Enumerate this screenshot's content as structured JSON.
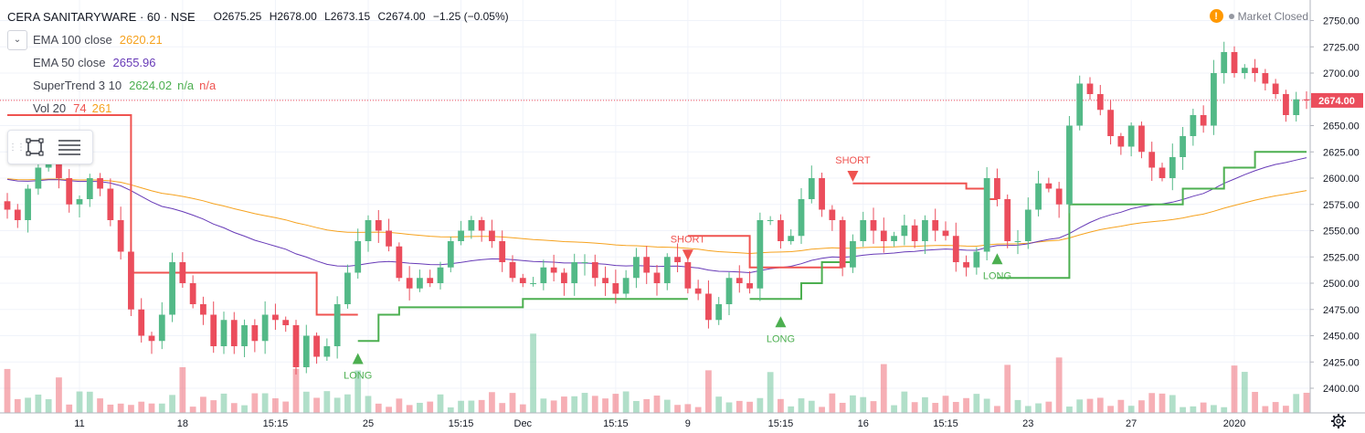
{
  "header": {
    "symbol": "CERA SANITARYWARE · 60 · NSE",
    "open": "O2675.25",
    "high": "H2678.00",
    "low": "L2673.15",
    "close": "C2674.00",
    "change": "−1.25 (−0.05%)"
  },
  "indicators": [
    {
      "name": "EMA 100 close",
      "value": "2620.21",
      "color": "#f6a21e"
    },
    {
      "name": "EMA 50 close",
      "value": "2655.96",
      "color": "#673ab7"
    },
    {
      "name": "SuperTrend 3 10",
      "value": "2624.02",
      "extra1": "n/a",
      "extra2": "n/a",
      "color": "#4caf50",
      "extra_color": "#ef5350"
    },
    {
      "name": "Vol 20",
      "value": "74",
      "extra1": "261",
      "color": "#ef5350",
      "extra_color": "#f6a21e"
    }
  ],
  "status": {
    "label": "Market Closed"
  },
  "icons": [
    "chevron-down-icon",
    "rectangle-select-icon",
    "list-icon",
    "warning-icon",
    "gear-icon"
  ],
  "colors": {
    "up": "#53b987",
    "down": "#eb4d5c",
    "st_up": "#4caf50",
    "st_down": "#ef5350",
    "ema100": "#f6a21e",
    "ema50": "#673ab7"
  },
  "chart_data": {
    "type": "candlestick",
    "y_ticks": [
      2400,
      2425,
      2450,
      2475,
      2500,
      2525,
      2550,
      2575,
      2600,
      2625,
      2650,
      2675,
      2700,
      2725,
      2750
    ],
    "ylim": [
      2385,
      2760
    ],
    "last_price_label": "2674.00",
    "last_price": 2674,
    "x_labels": [
      {
        "label": "11",
        "i": 7
      },
      {
        "label": "18",
        "i": 17
      },
      {
        "label": "15:15",
        "i": 26
      },
      {
        "label": "25",
        "i": 35
      },
      {
        "label": "15:15",
        "i": 44
      },
      {
        "label": "Dec",
        "i": 50
      },
      {
        "label": "15:15",
        "i": 59
      },
      {
        "label": "9",
        "i": 66
      },
      {
        "label": "15:15",
        "i": 75
      },
      {
        "label": "16",
        "i": 83
      },
      {
        "label": "15:15",
        "i": 91
      },
      {
        "label": "23",
        "i": 99
      },
      {
        "label": "27",
        "i": 109
      },
      {
        "label": "2020",
        "i": 119
      }
    ],
    "close_series": [
      2570,
      2560,
      2590,
      2610,
      2620,
      2600,
      2575,
      2580,
      2600,
      2590,
      2560,
      2530,
      2475,
      2450,
      2445,
      2470,
      2520,
      2500,
      2480,
      2470,
      2440,
      2465,
      2440,
      2460,
      2445,
      2470,
      2465,
      2460,
      2420,
      2450,
      2430,
      2440,
      2480,
      2510,
      2540,
      2560,
      2550,
      2535,
      2505,
      2495,
      2505,
      2500,
      2515,
      2540,
      2550,
      2560,
      2550,
      2540,
      2520,
      2505,
      2500,
      2500,
      2515,
      2510,
      2500,
      2520,
      2520,
      2505,
      2500,
      2490,
      2505,
      2525,
      2510,
      2500,
      2525,
      2520,
      2495,
      2490,
      2465,
      2480,
      2505,
      2500,
      2495,
      2560,
      2560,
      2540,
      2545,
      2580,
      2600,
      2570,
      2560,
      2515,
      2540,
      2560,
      2550,
      2540,
      2545,
      2555,
      2540,
      2560,
      2550,
      2545,
      2520,
      2515,
      2530,
      2600,
      2580,
      2540,
      2540,
      2570,
      2595,
      2590,
      2575,
      2650,
      2690,
      2680,
      2665,
      2640,
      2630,
      2650,
      2625,
      2610,
      2600,
      2620,
      2640,
      2660,
      2650,
      2700,
      2720,
      2700,
      2705,
      2700,
      2690,
      2680,
      2660,
      2675,
      2674
    ],
    "markers": [
      {
        "text": "SHORT",
        "type": "short"
      },
      {
        "text": "SHORT",
        "type": "short"
      },
      {
        "text": "LONG",
        "type": "long"
      },
      {
        "text": "LONG",
        "type": "long"
      },
      {
        "text": "LONG",
        "type": "long"
      }
    ]
  }
}
